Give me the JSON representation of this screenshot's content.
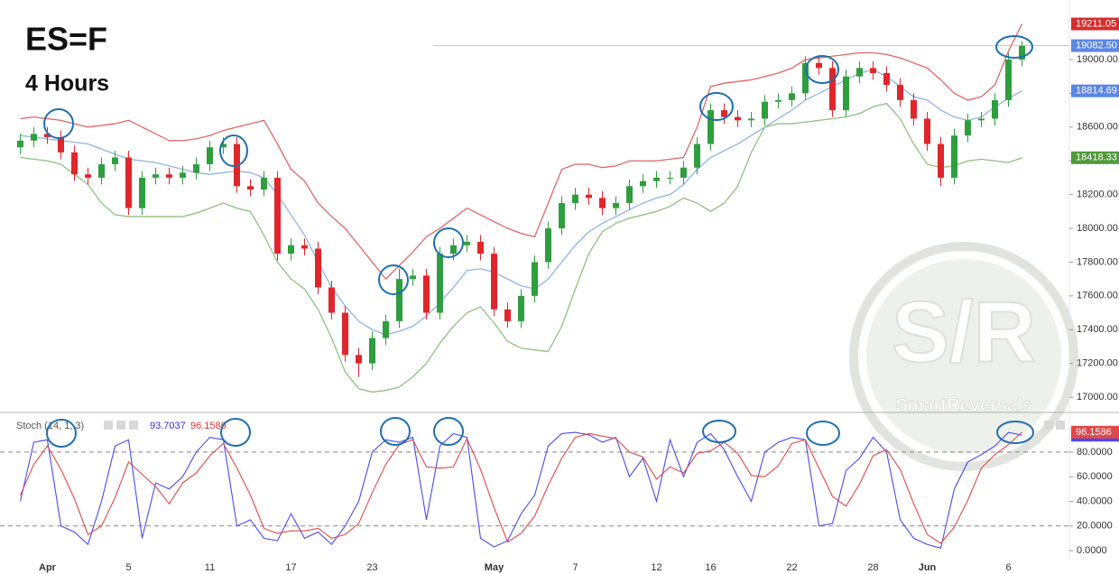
{
  "header": {
    "ticker": "ES=F",
    "interval": "4 Hours"
  },
  "watermark": {
    "logo": "S/R",
    "brand": "SmartReversals"
  },
  "chart_data": [
    {
      "type": "candlestick",
      "categories": [
        null,
        null,
        "Apr",
        null,
        null,
        null,
        null,
        null,
        "5",
        null,
        null,
        null,
        null,
        null,
        "11",
        null,
        null,
        null,
        null,
        null,
        "17",
        null,
        null,
        null,
        null,
        null,
        "23",
        null,
        null,
        null,
        null,
        null,
        null,
        null,
        null,
        "May",
        null,
        null,
        null,
        null,
        null,
        "7",
        null,
        null,
        null,
        null,
        null,
        "12",
        null,
        null,
        null,
        "16",
        null,
        null,
        null,
        null,
        null,
        "22",
        null,
        null,
        null,
        null,
        null,
        "28",
        null,
        null,
        null,
        "Jun",
        null,
        null,
        null,
        null,
        null,
        "6",
        null
      ],
      "open": [
        18480,
        18520,
        18560,
        18540,
        18450,
        18320,
        18300,
        18380,
        18420,
        18120,
        18300,
        18320,
        18300,
        18330,
        18380,
        18480,
        18500,
        18250,
        18230,
        18300,
        17850,
        17900,
        17880,
        17650,
        17500,
        17250,
        17200,
        17350,
        17450,
        17700,
        17720,
        17500,
        17850,
        17900,
        17920,
        17850,
        17520,
        17450,
        17600,
        17800,
        18000,
        18150,
        18200,
        18180,
        18120,
        18150,
        18250,
        18280,
        18300,
        18300,
        18360,
        18500,
        18700,
        18660,
        18640,
        18650,
        18750,
        18760,
        18800,
        18980,
        18950,
        18700,
        18900,
        18950,
        18920,
        18850,
        18760,
        18650,
        18500,
        18300,
        18550,
        18640,
        18650,
        18760,
        19000
      ],
      "high": [
        18560,
        18600,
        18600,
        18580,
        18490,
        18360,
        18420,
        18460,
        18460,
        18340,
        18360,
        18360,
        18370,
        18420,
        18520,
        18540,
        18540,
        18290,
        18340,
        18340,
        17940,
        17940,
        17920,
        17690,
        17540,
        17290,
        17390,
        17490,
        17760,
        17760,
        17760,
        17890,
        17940,
        17960,
        17960,
        17890,
        17560,
        17640,
        17840,
        18040,
        18190,
        18240,
        18240,
        18220,
        18190,
        18290,
        18320,
        18340,
        18340,
        18400,
        18540,
        18740,
        18740,
        18700,
        18690,
        18790,
        18800,
        18840,
        19020,
        19020,
        18990,
        18940,
        18990,
        18990,
        18960,
        18890,
        18800,
        18690,
        18540,
        18590,
        18680,
        18690,
        18800,
        19040,
        19110
      ],
      "low": [
        18440,
        18480,
        18500,
        18410,
        18280,
        18260,
        18260,
        18340,
        18080,
        18080,
        18260,
        18260,
        18260,
        18290,
        18340,
        18440,
        18210,
        18190,
        18190,
        17810,
        17810,
        17840,
        17610,
        17460,
        17210,
        17120,
        17160,
        17310,
        17410,
        17660,
        17460,
        17460,
        17810,
        17860,
        17810,
        17480,
        17410,
        17410,
        17560,
        17760,
        17960,
        18110,
        18140,
        18080,
        18080,
        18110,
        18210,
        18240,
        18260,
        18260,
        18320,
        18460,
        18620,
        18600,
        18600,
        18610,
        18710,
        18720,
        18760,
        18910,
        18660,
        18660,
        18860,
        18880,
        18810,
        18720,
        18610,
        18460,
        18250,
        18260,
        18510,
        18600,
        18610,
        18720,
        18960
      ],
      "close": [
        18520,
        18560,
        18540,
        18450,
        18320,
        18300,
        18380,
        18420,
        18120,
        18300,
        18320,
        18300,
        18330,
        18380,
        18480,
        18500,
        18250,
        18230,
        18300,
        17850,
        17900,
        17880,
        17650,
        17500,
        17250,
        17200,
        17350,
        17450,
        17700,
        17720,
        17500,
        17850,
        17900,
        17920,
        17850,
        17520,
        17450,
        17600,
        17800,
        18000,
        18150,
        18200,
        18180,
        18120,
        18150,
        18250,
        18280,
        18300,
        18300,
        18360,
        18500,
        18700,
        18660,
        18640,
        18650,
        18750,
        18760,
        18800,
        18980,
        18950,
        18700,
        18900,
        18950,
        18920,
        18850,
        18760,
        18650,
        18500,
        18300,
        18550,
        18640,
        18650,
        18760,
        19000,
        19082.5
      ],
      "up_color": "#2e9e3e",
      "down_color": "#e0262b",
      "bands": [
        {
          "color": "#e06666",
          "values": [
            18650,
            18660,
            18650,
            18640,
            18620,
            18600,
            18610,
            18620,
            18640,
            18600,
            18560,
            18520,
            18520,
            18530,
            18550,
            18580,
            18600,
            18620,
            18640,
            18500,
            18350,
            18280,
            18150,
            18070,
            18000,
            17900,
            17800,
            17700,
            17780,
            17860,
            17950,
            18000,
            18060,
            18120,
            18080,
            18040,
            18000,
            17970,
            17950,
            18150,
            18350,
            18380,
            18380,
            18360,
            18370,
            18400,
            18400,
            18400,
            18410,
            18420,
            18600,
            18840,
            18860,
            18870,
            18880,
            18900,
            18920,
            18950,
            19000,
            19010,
            19020,
            19030,
            19040,
            19040,
            19030,
            19010,
            18980,
            18950,
            18880,
            18800,
            18760,
            18780,
            18850,
            19050,
            19211.05
          ]
        },
        {
          "color": "#8fb4e3",
          "values": [
            18550,
            18540,
            18530,
            18520,
            18510,
            18500,
            18470,
            18440,
            18410,
            18400,
            18390,
            18370,
            18350,
            18330,
            18320,
            18330,
            18340,
            18330,
            18300,
            18200,
            18080,
            17960,
            17800,
            17650,
            17540,
            17450,
            17400,
            17370,
            17390,
            17420,
            17480,
            17560,
            17650,
            17750,
            17760,
            17740,
            17700,
            17660,
            17640,
            17700,
            17800,
            17900,
            17980,
            18030,
            18070,
            18110,
            18150,
            18180,
            18200,
            18260,
            18350,
            18420,
            18460,
            18500,
            18550,
            18600,
            18650,
            18700,
            18760,
            18800,
            18840,
            18880,
            18920,
            18940,
            18900,
            18840,
            18780,
            18760,
            18700,
            18660,
            18640,
            18660,
            18720,
            18770,
            18814.69
          ]
        },
        {
          "color": "#8fc07f",
          "values": [
            18420,
            18410,
            18400,
            18380,
            18320,
            18260,
            18150,
            18080,
            18070,
            18070,
            18070,
            18070,
            18070,
            18090,
            18120,
            18150,
            18120,
            18100,
            17960,
            17800,
            17700,
            17640,
            17520,
            17350,
            17150,
            17050,
            17030,
            17040,
            17060,
            17120,
            17200,
            17320,
            17420,
            17500,
            17535,
            17440,
            17330,
            17290,
            17280,
            17270,
            17420,
            17640,
            17850,
            17980,
            18030,
            18060,
            18080,
            18100,
            18130,
            18180,
            18150,
            18100,
            18150,
            18250,
            18450,
            18600,
            18620,
            18620,
            18630,
            18640,
            18650,
            18660,
            18680,
            18720,
            18740,
            18650,
            18500,
            18380,
            18360,
            18370,
            18400,
            18410,
            18400,
            18390,
            18418.33
          ]
        }
      ],
      "ylim": [
        16920,
        19353
      ],
      "yticks": [
        {
          "value": 17000,
          "label": "17000.00"
        },
        {
          "value": 17200,
          "label": "17200.00"
        },
        {
          "value": 17400,
          "label": "17400.00"
        },
        {
          "value": 17600,
          "label": "17600.00"
        },
        {
          "value": 17800,
          "label": "17800.00"
        },
        {
          "value": 18000,
          "label": "18000.00"
        },
        {
          "value": 18200,
          "label": "18200.00"
        },
        {
          "value": 18400,
          "label": "18400.00"
        },
        {
          "value": 18600,
          "label": "18600.00"
        },
        {
          "value": 18800,
          "label": "18800.00"
        },
        {
          "value": 19000,
          "label": "19000.00"
        }
      ],
      "price_markers": [
        {
          "value": 19211.05,
          "color": "#d32f2f"
        },
        {
          "value": 19082.5,
          "label": "19082.50",
          "color": "#5b86e5"
        },
        {
          "value": 18814.69,
          "color": "#5b86e5"
        },
        {
          "value": 18418.33,
          "color": "#4f9a3a"
        }
      ]
    },
    {
      "type": "line",
      "title": "Stoch (14, 1, 3)",
      "series": [
        {
          "color": "#4a4af0",
          "values": [
            40,
            88,
            90,
            20,
            15,
            5,
            40,
            85,
            90,
            10,
            55,
            50,
            60,
            80,
            92,
            90,
            20,
            25,
            10,
            8,
            30,
            10,
            15,
            5,
            20,
            40,
            80,
            90,
            88,
            92,
            25,
            85,
            95,
            92,
            10,
            3,
            8,
            30,
            45,
            85,
            95,
            96,
            94,
            88,
            92,
            60,
            75,
            40,
            90,
            60,
            88,
            95,
            82,
            60,
            40,
            80,
            88,
            92,
            90,
            20,
            22,
            65,
            75,
            92,
            80,
            25,
            10,
            5,
            2,
            50,
            72,
            78,
            85,
            96,
            93.7037
          ]
        },
        {
          "color": "#e04848",
          "values": [
            45,
            70,
            85,
            66,
            42,
            13,
            20,
            43,
            72,
            62,
            52,
            38,
            55,
            63,
            77,
            87,
            67,
            45,
            18,
            14,
            16,
            16,
            18,
            10,
            13,
            22,
            47,
            70,
            86,
            90,
            68,
            67,
            68,
            91,
            66,
            35,
            7,
            14,
            28,
            53,
            75,
            92,
            95,
            93,
            91,
            80,
            76,
            58,
            68,
            63,
            79,
            81,
            88,
            79,
            61,
            60,
            69,
            87,
            90,
            67,
            44,
            36,
            54,
            77,
            82,
            66,
            38,
            13,
            6,
            19,
            41,
            67,
            78,
            86,
            96.1586
          ]
        }
      ],
      "ylim": [
        -7.3,
        110
      ],
      "yticks": [
        {
          "value": 0,
          "label": "0.0000"
        },
        {
          "value": 20,
          "label": "20.0000"
        },
        {
          "value": 40,
          "label": "40.0000"
        },
        {
          "value": 60,
          "label": "60.0000"
        },
        {
          "value": 80,
          "label": "80.0000"
        }
      ],
      "levels": [
        20,
        80
      ]
    }
  ]
}
